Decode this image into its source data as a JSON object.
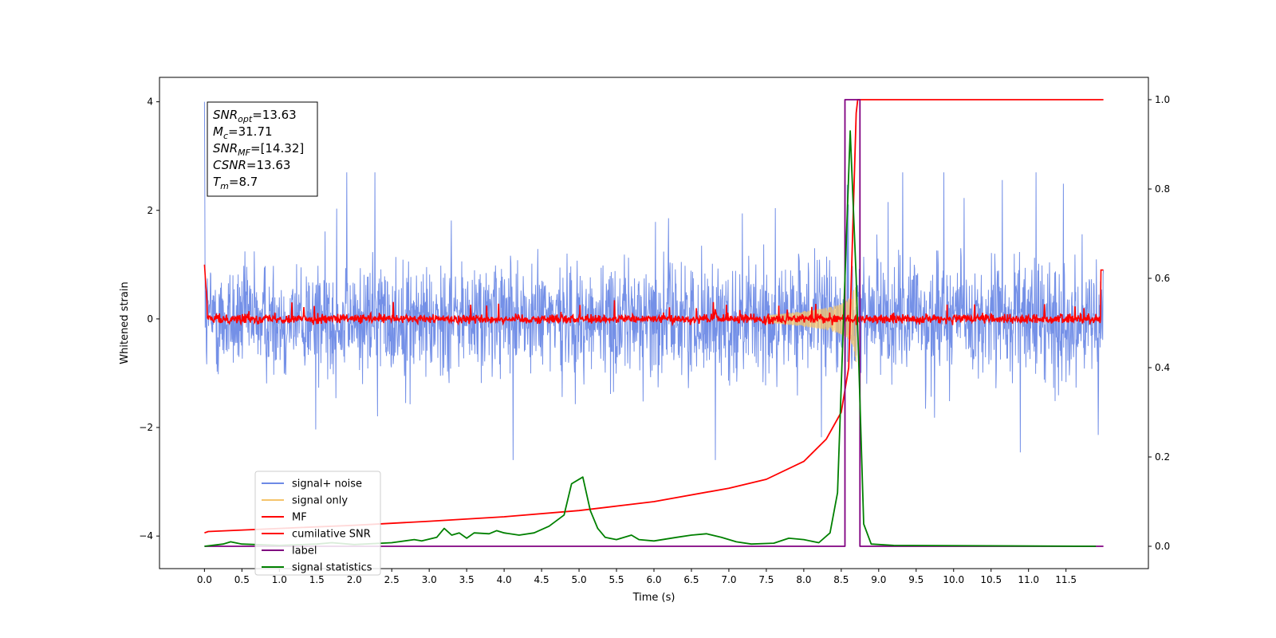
{
  "chart_data": {
    "type": "line",
    "title": "",
    "xlabel": "Time (s)",
    "ylabel": "Whitened strain",
    "xlim": [
      -0.6,
      12.6
    ],
    "ylim": [
      -4.6,
      4.45
    ],
    "ylim_right": [
      -0.05,
      1.05
    ],
    "x_ticks": [
      "0.0",
      "0.5",
      "1.0",
      "1.5",
      "2.0",
      "2.5",
      "3.0",
      "3.5",
      "4.0",
      "4.5",
      "5.0",
      "5.5",
      "6.0",
      "6.5",
      "7.0",
      "7.5",
      "8.0",
      "8.5",
      "9.0",
      "9.5",
      "10.0",
      "10.5",
      "11.0",
      "11.5"
    ],
    "y_ticks_left": [
      "4",
      "2",
      "0",
      "−2",
      "−4"
    ],
    "y_ticks_right": [
      "1.0",
      "0.8",
      "0.6",
      "0.4",
      "0.2",
      "0.0"
    ],
    "grid": false,
    "legend_position": "lower-left",
    "legend": [
      {
        "label": "signal+ noise",
        "color": "#6d8ae6"
      },
      {
        "label": "signal only",
        "color": "#f5c46b"
      },
      {
        "label": "MF",
        "color": "#ff0000"
      },
      {
        "label": "cumilative SNR",
        "color": "#ff0000"
      },
      {
        "label": "label",
        "color": "#800080"
      },
      {
        "label": "signal statistics",
        "color": "#008000"
      }
    ],
    "annotation": {
      "lines": [
        {
          "sym": "SNR",
          "sub": "opt",
          "val": "=13.63"
        },
        {
          "sym": "M",
          "sub": "c",
          "val": "=31.71"
        },
        {
          "sym": "SNR",
          "sub": "MF",
          "val": "=[14.32]"
        },
        {
          "sym": "CSNR",
          "sub": "",
          "val": "=13.63"
        },
        {
          "sym": "T",
          "sub": "m",
          "val": "=8.7"
        }
      ]
    },
    "series": [
      {
        "name": "signal+ noise",
        "axis": "left",
        "description": "whitened strain noise, amplitude approx ±2, spikes to about 2.7 and -2.6, values at x=0: 4.0 and 2.4",
        "x_range": [
          0,
          12
        ],
        "envelope": [
          -2.6,
          2.7
        ]
      },
      {
        "name": "signal only",
        "axis": "left",
        "description": "chirp growing toward merger",
        "x_range": [
          7.5,
          8.7
        ],
        "peak_amplitude": 0.8,
        "merger_time": 8.7
      },
      {
        "name": "MF",
        "axis": "left",
        "description": "matched filter output, near 0 with noise amplitude about 0.2, ends rise to about 1.0",
        "x_range": [
          0,
          12
        ]
      },
      {
        "name": "cumilative SNR",
        "axis": "right",
        "x": [
          0,
          0.05,
          1,
          2,
          3,
          4,
          5,
          6,
          7,
          7.5,
          8,
          8.3,
          8.5,
          8.6,
          8.7,
          8.72,
          12
        ],
        "values": [
          0.03,
          0.033,
          0.04,
          0.047,
          0.056,
          0.066,
          0.08,
          0.1,
          0.13,
          0.15,
          0.19,
          0.24,
          0.3,
          0.4,
          0.97,
          1.0,
          1.0
        ]
      },
      {
        "name": "label",
        "axis": "right",
        "x": [
          0,
          8.55,
          8.55,
          8.75,
          8.75,
          12
        ],
        "values": [
          0,
          0,
          1,
          1,
          0,
          0
        ]
      },
      {
        "name": "signal statistics",
        "axis": "right",
        "x": [
          0,
          0.25,
          0.35,
          0.5,
          1,
          1.5,
          1.7,
          2,
          2.5,
          2.8,
          2.9,
          3.1,
          3.2,
          3.3,
          3.4,
          3.5,
          3.6,
          3.8,
          3.9,
          4,
          4.2,
          4.4,
          4.6,
          4.8,
          4.9,
          5.05,
          5.15,
          5.25,
          5.35,
          5.5,
          5.7,
          5.8,
          6.0,
          6.3,
          6.5,
          6.7,
          6.9,
          7.1,
          7.3,
          7.6,
          7.8,
          8.0,
          8.2,
          8.35,
          8.45,
          8.55,
          8.62,
          8.7,
          8.8,
          8.9,
          9.2,
          11.9
        ],
        "values": [
          0.0,
          0.005,
          0.01,
          0.005,
          0.002,
          0.005,
          0.008,
          0.004,
          0.008,
          0.015,
          0.012,
          0.02,
          0.04,
          0.025,
          0.03,
          0.018,
          0.03,
          0.028,
          0.035,
          0.03,
          0.025,
          0.03,
          0.045,
          0.07,
          0.14,
          0.155,
          0.08,
          0.04,
          0.02,
          0.015,
          0.025,
          0.015,
          0.012,
          0.02,
          0.025,
          0.028,
          0.02,
          0.01,
          0.005,
          0.007,
          0.018,
          0.015,
          0.008,
          0.03,
          0.12,
          0.6,
          0.93,
          0.6,
          0.05,
          0.005,
          0.002,
          0.0
        ]
      }
    ]
  }
}
